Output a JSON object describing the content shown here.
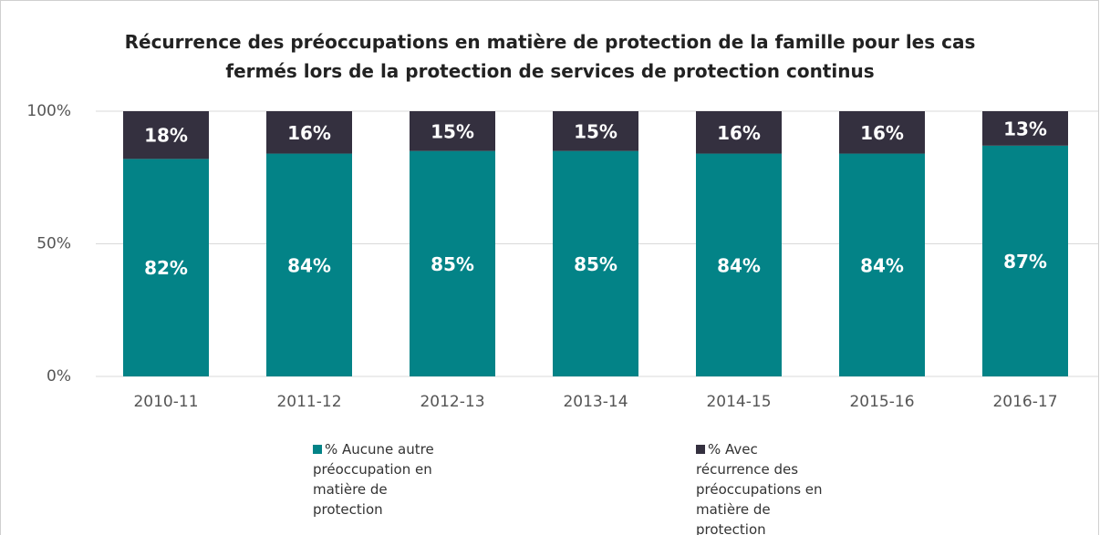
{
  "chart_data": {
    "type": "stacked_bar",
    "title": "Récurrence des préoccupations en matière de protection de la famille pour les cas fermés lors de la protection de services de protection continus",
    "categories": [
      "2010-11",
      "2011-12",
      "2012-13",
      "2013-14",
      "2014-15",
      "2015-16",
      "2016-17"
    ],
    "series": [
      {
        "name": "% Aucune autre préoccupation en matière de protection",
        "color": "#038387",
        "values": [
          82,
          84,
          85,
          85,
          84,
          84,
          87
        ],
        "value_labels": [
          "82%",
          "84%",
          "85%",
          "85%",
          "84%",
          "84%",
          "87%"
        ]
      },
      {
        "name": "% Avec récurrence des préoccupations en matière de protection",
        "color": "#34303f",
        "values": [
          18,
          16,
          15,
          15,
          16,
          16,
          13
        ],
        "value_labels": [
          "18%",
          "16%",
          "15%",
          "15%",
          "16%",
          "16%",
          "13%"
        ]
      }
    ],
    "ylim": [
      0,
      100
    ],
    "yticks": [
      {
        "value": 0,
        "label": "0%"
      },
      {
        "value": 50,
        "label": "50%"
      },
      {
        "value": 100,
        "label": "100%"
      }
    ],
    "grid": true,
    "legend": "bottom"
  }
}
